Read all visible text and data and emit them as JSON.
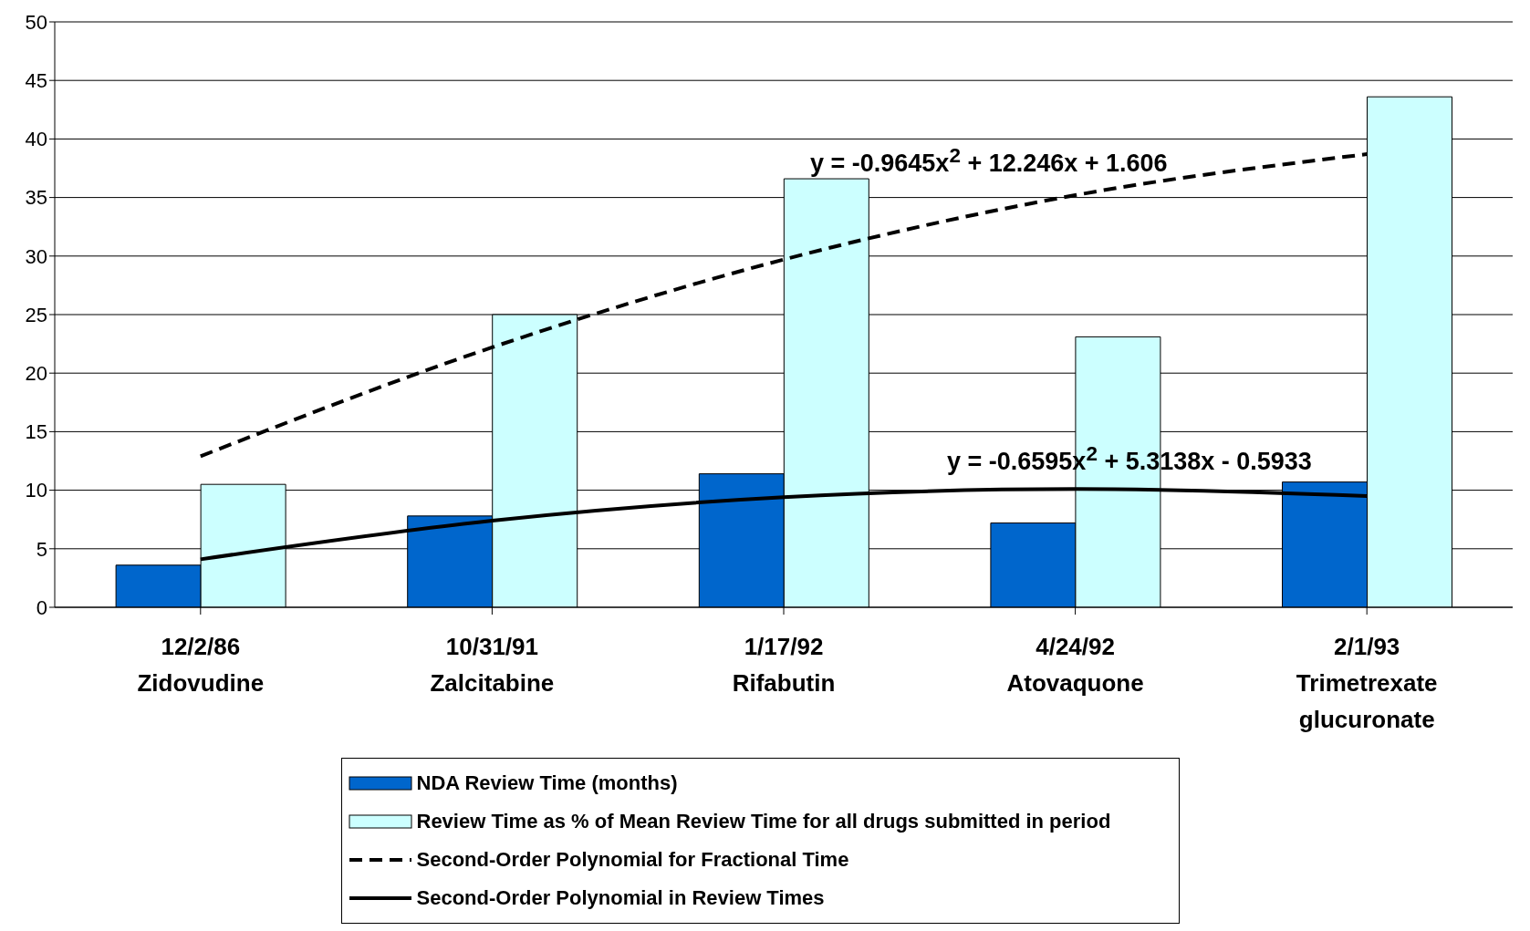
{
  "chart_data": {
    "type": "bar",
    "categories": [
      "12/2/86 Zidovudine",
      "10/31/91 Zalcitabine",
      "1/17/92 Rifabutin",
      "4/24/92 Atovaquone",
      "2/1/93 Trimetrexate glucuronate"
    ],
    "series": [
      {
        "name": "NDA Review Time (months)",
        "color": "#0066cc",
        "values": [
          3.6,
          7.8,
          11.4,
          7.2,
          10.7
        ]
      },
      {
        "name": "Review Time as % of Mean Review Time for all drugs submitted in period",
        "color": "#ccffff",
        "values": [
          10.5,
          25,
          36.6,
          23.1,
          43.6
        ]
      },
      {
        "name": "Second-Order Polynomial for Fractional Time",
        "type": "line",
        "color": "#000000",
        "line_style": "dashed",
        "values": [
          12.9,
          22.2,
          29.7,
          35.2,
          38.7
        ]
      },
      {
        "name": "Second-Order Polynomial in Review Times",
        "type": "line",
        "color": "#000000",
        "line_style": "solid",
        "values": [
          4.1,
          7.4,
          9.4,
          10.1,
          9.5
        ]
      }
    ],
    "ylim": [
      0,
      50
    ],
    "yticks": [
      0,
      5,
      10,
      15,
      20,
      25,
      30,
      35,
      40,
      45,
      50
    ],
    "grid": "y",
    "legend": "bottom",
    "marker": "none",
    "annotations": [
      "y = -0.9645x$^{2}$ + 12.246x + 1.606",
      "y = -0.6595x$^{2}$ + 5.3138x - 0.5933"
    ]
  }
}
